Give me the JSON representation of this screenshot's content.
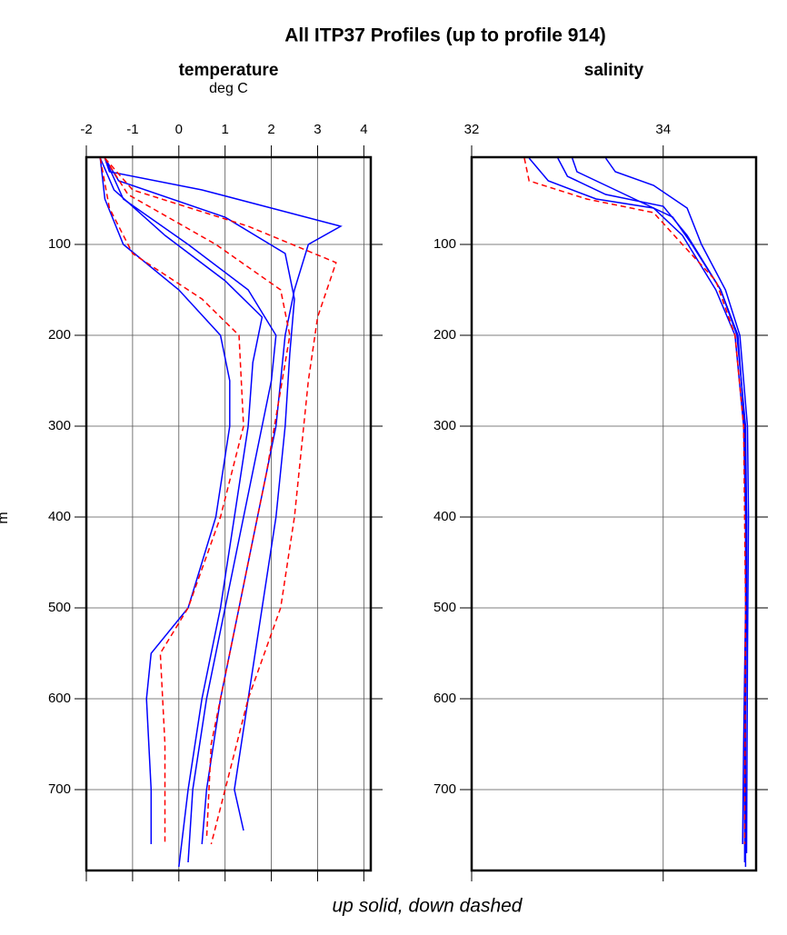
{
  "title": "All ITP37 Profiles (up to profile 914)",
  "caption": "up solid, down dashed",
  "chart_data": [
    {
      "type": "line",
      "title": "temperature",
      "xlabel": "deg C",
      "ylabel": "m",
      "xlim": [
        -2,
        4.15
      ],
      "xticks": [
        -2,
        -1,
        0,
        1,
        2,
        3,
        4
      ],
      "ylim": [
        4,
        789
      ],
      "yticks": [
        100,
        200,
        300,
        400,
        500,
        600,
        700
      ],
      "invert_y": true,
      "grid": true,
      "series": [
        {
          "color": "#0000ff",
          "dashed": false,
          "x": [
            -1.6,
            -1.5,
            0.5,
            2,
            3.5,
            2.8,
            2.5,
            2.3,
            2.2,
            2.1,
            1.7,
            1.3,
            0.9,
            0.6,
            0.5
          ],
          "values": [
            5,
            20,
            40,
            60,
            80,
            100,
            150,
            200,
            250,
            300,
            400,
            500,
            600,
            700,
            760
          ]
        },
        {
          "color": "#0000ff",
          "dashed": false,
          "x": [
            -1.7,
            -1.6,
            -1.2,
            0,
            0.9,
            1.1,
            1.1,
            0.8,
            0.2,
            -0.6,
            -0.7,
            -0.6,
            -0.6
          ],
          "values": [
            5,
            50,
            100,
            150,
            200,
            250,
            300,
            400,
            500,
            550,
            600,
            700,
            760
          ]
        },
        {
          "color": "#0000ff",
          "dashed": false,
          "x": [
            -1.6,
            -1.2,
            0.2,
            1.5,
            2.1,
            2.0,
            1.8,
            1.4,
            1.0,
            0.6,
            0.3,
            0.2
          ],
          "values": [
            5,
            50,
            100,
            150,
            200,
            250,
            300,
            400,
            500,
            600,
            700,
            780
          ]
        },
        {
          "color": "#0000ff",
          "dashed": false,
          "x": [
            -1.7,
            -1.4,
            -0.3,
            1.0,
            1.8,
            1.6,
            1.5,
            1.2,
            0.9,
            0.5,
            0.2,
            0.0
          ],
          "values": [
            5,
            40,
            90,
            140,
            180,
            230,
            300,
            400,
            500,
            600,
            700,
            785
          ]
        },
        {
          "color": "#0000ff",
          "dashed": false,
          "x": [
            -1.6,
            -1.3,
            1.0,
            2.3,
            2.5,
            2.4,
            2.3,
            2.1,
            1.8,
            1.5,
            1.2,
            1.4
          ],
          "values": [
            5,
            30,
            70,
            110,
            160,
            220,
            300,
            400,
            500,
            600,
            700,
            745
          ]
        },
        {
          "color": "#ff0000",
          "dashed": true,
          "x": [
            -1.6,
            -1.0,
            1.5,
            3.4,
            3.0,
            2.8,
            2.5,
            2.2,
            1.5,
            1.0,
            0.7
          ],
          "values": [
            5,
            40,
            80,
            120,
            180,
            250,
            400,
            500,
            600,
            700,
            760
          ]
        },
        {
          "color": "#ff0000",
          "dashed": true,
          "x": [
            -1.7,
            -1.5,
            -1.0,
            0.5,
            1.3,
            1.4,
            0.9,
            0.2,
            -0.4,
            -0.3,
            -0.3
          ],
          "values": [
            5,
            60,
            110,
            160,
            200,
            300,
            400,
            500,
            550,
            650,
            760
          ]
        },
        {
          "color": "#ff0000",
          "dashed": true,
          "x": [
            -1.6,
            -1.1,
            0.8,
            2.2,
            2.4,
            2.2,
            1.9,
            1.5,
            1.1,
            0.7,
            0.6
          ],
          "values": [
            5,
            45,
            100,
            150,
            200,
            260,
            350,
            450,
            550,
            650,
            755
          ]
        }
      ]
    },
    {
      "type": "line",
      "title": "salinity",
      "xlim": [
        32,
        34.97
      ],
      "xticks": [
        32,
        34
      ],
      "ylim": [
        4,
        789
      ],
      "yticks": [
        100,
        200,
        300,
        400,
        500,
        600,
        700
      ],
      "invert_y": true,
      "grid": true,
      "series": [
        {
          "color": "#0000ff",
          "dashed": false,
          "x": [
            33.05,
            33.1,
            33.5,
            33.8,
            34.1,
            34.3,
            34.6,
            34.78,
            34.85,
            34.87,
            34.87,
            34.86,
            34.85,
            34.85
          ],
          "values": [
            5,
            20,
            40,
            55,
            70,
            100,
            150,
            200,
            300,
            400,
            500,
            600,
            700,
            780
          ]
        },
        {
          "color": "#0000ff",
          "dashed": false,
          "x": [
            32.6,
            32.8,
            33.3,
            33.9,
            34.2,
            34.55,
            34.75,
            34.84,
            34.86,
            34.86,
            34.84,
            34.83
          ],
          "values": [
            5,
            30,
            50,
            60,
            90,
            150,
            200,
            300,
            400,
            500,
            650,
            760
          ]
        },
        {
          "color": "#0000ff",
          "dashed": false,
          "x": [
            33.4,
            33.5,
            33.9,
            34.25,
            34.4,
            34.65,
            34.8,
            34.88,
            34.89,
            34.88,
            34.87
          ],
          "values": [
            5,
            20,
            35,
            60,
            100,
            150,
            200,
            300,
            400,
            550,
            770
          ]
        },
        {
          "color": "#0000ff",
          "dashed": false,
          "x": [
            32.9,
            33.0,
            33.4,
            34.0,
            34.25,
            34.6,
            34.77,
            34.86,
            34.87,
            34.86,
            34.86
          ],
          "values": [
            5,
            25,
            45,
            58,
            90,
            150,
            200,
            300,
            400,
            600,
            785
          ]
        },
        {
          "color": "#ff0000",
          "dashed": true,
          "x": [
            32.55,
            32.6,
            33.2,
            33.9,
            34.2,
            34.55,
            34.75,
            34.84,
            34.86,
            34.85
          ],
          "values": [
            5,
            30,
            50,
            65,
            100,
            140,
            200,
            300,
            500,
            760
          ]
        }
      ]
    }
  ]
}
